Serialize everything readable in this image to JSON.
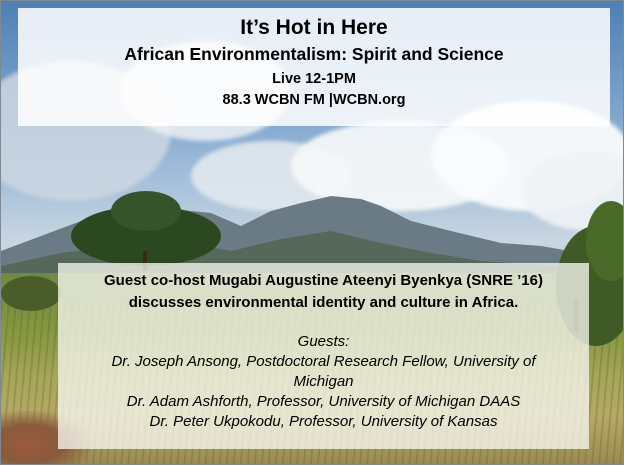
{
  "header": {
    "title": "It’s Hot in Here",
    "subtitle": "African Environmentalism: Spirit and Science",
    "time": "Live 12-1PM",
    "station": "88.3 WCBN FM |WCBN.org"
  },
  "details": {
    "intro_line1": "Guest co-host Mugabi Augustine Ateenyi Byenkya (SNRE ’16)",
    "intro_line2": "discusses environmental identity and culture in Africa.",
    "guests_label": "Guests:",
    "guests": [
      "Dr. Joseph Ansong, Postdoctoral Research Fellow, University of",
      "Michigan",
      "Dr. Adam Ashforth, Professor, University of Michigan DAAS",
      "Dr. Peter Ukpokodu, Professor, University of Kansas"
    ]
  },
  "background": {
    "scene": "savanna with mountains and cloudy sky"
  }
}
